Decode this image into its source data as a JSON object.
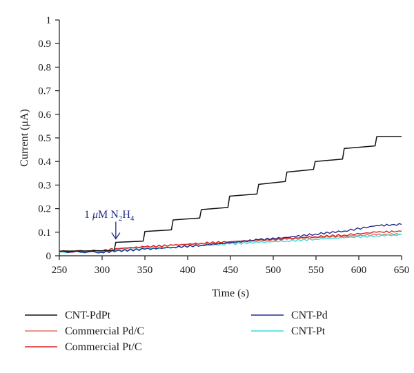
{
  "chart_data": {
    "type": "line",
    "xlabel": "Time (s)",
    "ylabel": "Current (μA)",
    "xlim": [
      250,
      650
    ],
    "ylim": [
      0,
      1
    ],
    "x_ticks": [
      "250",
      "300",
      "350",
      "400",
      "450",
      "500",
      "550",
      "600",
      "650"
    ],
    "y_ticks": [
      "0",
      "0.1",
      "0.2",
      "0.3",
      "0.4",
      "0.5",
      "0.6",
      "0.7",
      "0.8",
      "0.9",
      "1"
    ],
    "grid": false,
    "legend_position": "bottom",
    "annotation": {
      "text_prefix": "1 ",
      "mu": "μ",
      "text_m": "M N",
      "sub1": "2",
      "text_h": "H",
      "sub2": "4",
      "x": 316,
      "y": 0.057
    },
    "series": [
      {
        "name": "CNT-PdPt",
        "color": "#111111",
        "x": [
          250,
          314,
          316,
          348,
          350,
          381,
          383,
          414,
          416,
          447,
          449,
          481,
          483,
          514,
          516,
          547,
          549,
          581,
          583,
          619,
          621,
          650
        ],
        "y": [
          0.02,
          0.022,
          0.057,
          0.062,
          0.103,
          0.11,
          0.152,
          0.16,
          0.196,
          0.205,
          0.253,
          0.262,
          0.303,
          0.315,
          0.355,
          0.366,
          0.4,
          0.41,
          0.455,
          0.466,
          0.505,
          0.505
        ]
      },
      {
        "name": "Commercial Pd/C",
        "color": "#e07060",
        "x": [
          250,
          300,
          316,
          350,
          383,
          416,
          449,
          483,
          516,
          549,
          583,
          621,
          650
        ],
        "y": [
          0.018,
          0.02,
          0.03,
          0.037,
          0.044,
          0.052,
          0.058,
          0.064,
          0.07,
          0.077,
          0.083,
          0.089,
          0.092
        ]
      },
      {
        "name": "Commercial Pt/C",
        "color": "#e02020",
        "x": [
          250,
          300,
          316,
          350,
          383,
          416,
          449,
          483,
          516,
          549,
          583,
          621,
          650
        ],
        "y": [
          0.018,
          0.021,
          0.03,
          0.038,
          0.045,
          0.053,
          0.06,
          0.067,
          0.073,
          0.081,
          0.088,
          0.1,
          0.104
        ]
      },
      {
        "name": "CNT-Pd",
        "color": "#1f2a8a",
        "x": [
          250,
          300,
          316,
          350,
          383,
          416,
          449,
          483,
          516,
          549,
          583,
          621,
          650
        ],
        "y": [
          0.018,
          0.015,
          0.02,
          0.028,
          0.036,
          0.045,
          0.055,
          0.068,
          0.078,
          0.092,
          0.105,
          0.128,
          0.133
        ]
      },
      {
        "name": "CNT-Pt",
        "color": "#33dddd",
        "x": [
          250,
          300,
          316,
          350,
          383,
          416,
          449,
          483,
          516,
          549,
          583,
          621,
          650
        ],
        "y": [
          0.016,
          0.018,
          0.024,
          0.03,
          0.036,
          0.043,
          0.05,
          0.057,
          0.063,
          0.07,
          0.077,
          0.085,
          0.09
        ]
      }
    ]
  }
}
